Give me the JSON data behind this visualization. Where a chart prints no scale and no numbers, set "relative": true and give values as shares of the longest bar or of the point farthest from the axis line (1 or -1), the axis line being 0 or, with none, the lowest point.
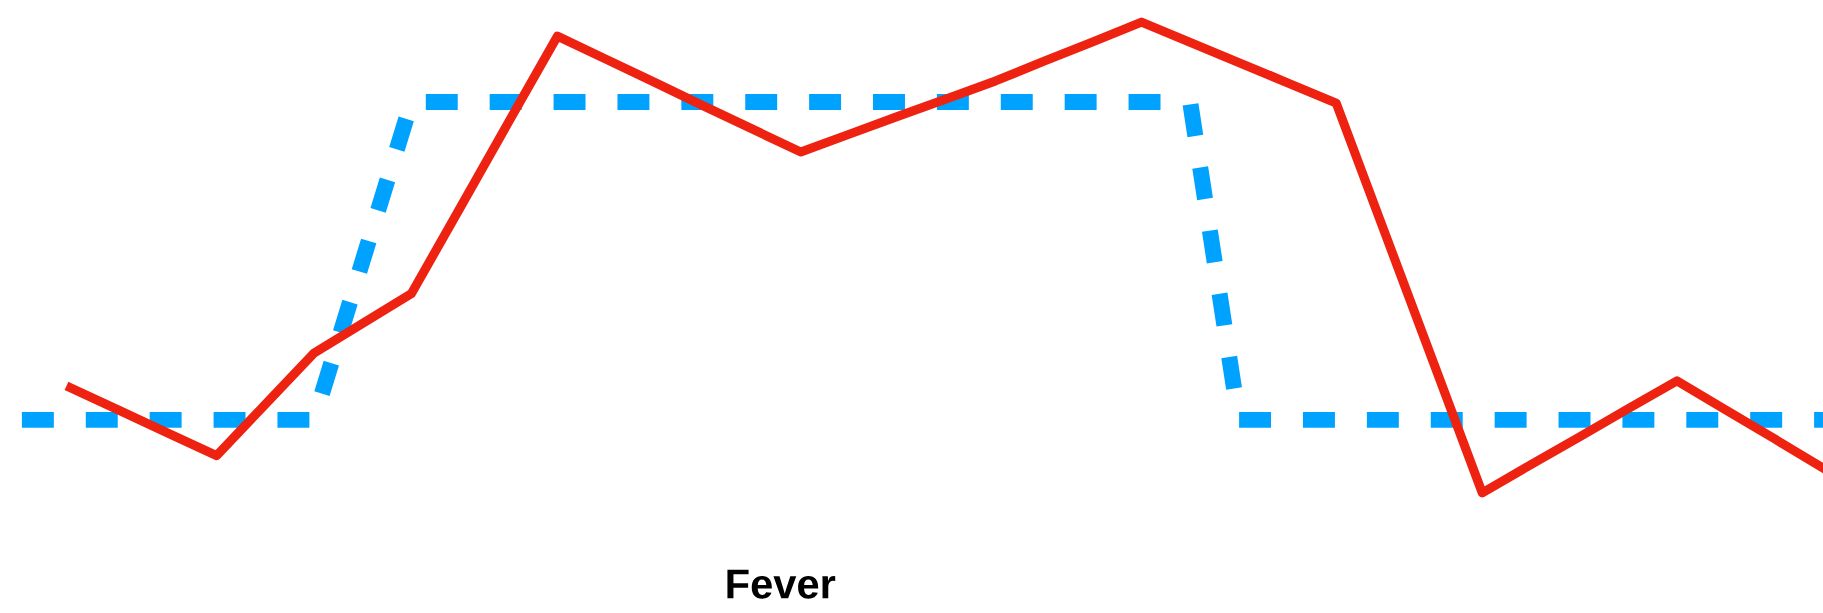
{
  "chart_data": {
    "type": "line",
    "relative": true,
    "xlabel": "Fever",
    "categories": [
      null,
      null,
      null,
      null,
      null,
      null,
      null,
      null,
      null,
      null,
      null,
      null,
      null,
      null,
      null,
      null,
      null,
      null,
      null,
      null,
      null,
      null,
      null,
      null,
      null,
      null,
      null,
      null,
      null,
      null,
      null,
      null,
      null,
      null,
      null,
      null,
      null,
      null
    ],
    "series": [
      {
        "color": "#00a2ff",
        "line_style": "dashed",
        "values": [
          0.155,
          0.155,
          0.155,
          0.155,
          0.155,
          0.155,
          0.155,
          0.493,
          0.83,
          0.83,
          0.83,
          0.83,
          0.83,
          0.83,
          0.83,
          0.83,
          0.83,
          0.83,
          0.83,
          0.83,
          0.83,
          0.83,
          0.83,
          0.83,
          0.83,
          0.155,
          0.155,
          0.155,
          0.155,
          0.155,
          0.155,
          0.155,
          0.155,
          0.155,
          0.155,
          0.155,
          0.155,
          0.155
        ]
      },
      {
        "color": "#ee2211",
        "line_style": "solid",
        "values": [
          null,
          0.223,
          0.175,
          0.127,
          0.079,
          0.188,
          0.297,
          0.36,
          0.423,
          0.605,
          0.788,
          0.97,
          0.921,
          0.872,
          0.822,
          0.773,
          0.724,
          0.762,
          0.8,
          0.837,
          0.875,
          0.917,
          0.958,
          1.0,
          0.957,
          0.914,
          0.871,
          0.828,
          0.552,
          0.276,
          0.0,
          0.06,
          0.119,
          0.179,
          0.238,
          0.176,
          0.115,
          0.053
        ]
      }
    ]
  }
}
